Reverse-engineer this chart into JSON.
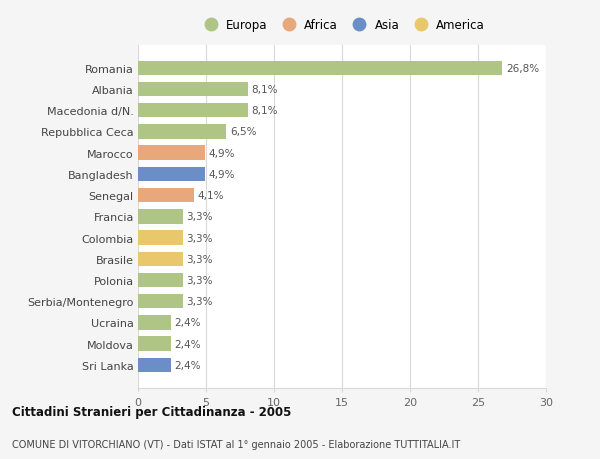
{
  "countries": [
    "Romania",
    "Albania",
    "Macedonia d/N.",
    "Repubblica Ceca",
    "Marocco",
    "Bangladesh",
    "Senegal",
    "Francia",
    "Colombia",
    "Brasile",
    "Polonia",
    "Serbia/Montenegro",
    "Ucraina",
    "Moldova",
    "Sri Lanka"
  ],
  "values": [
    26.8,
    8.1,
    8.1,
    6.5,
    4.9,
    4.9,
    4.1,
    3.3,
    3.3,
    3.3,
    3.3,
    3.3,
    2.4,
    2.4,
    2.4
  ],
  "labels": [
    "26,8%",
    "8,1%",
    "8,1%",
    "6,5%",
    "4,9%",
    "4,9%",
    "4,1%",
    "3,3%",
    "3,3%",
    "3,3%",
    "3,3%",
    "3,3%",
    "2,4%",
    "2,4%",
    "2,4%"
  ],
  "colors": [
    "#aec585",
    "#aec585",
    "#aec585",
    "#aec585",
    "#e8a87c",
    "#6b8ec7",
    "#e8a87c",
    "#aec585",
    "#e8c86b",
    "#e8c86b",
    "#aec585",
    "#aec585",
    "#aec585",
    "#aec585",
    "#6b8ec7"
  ],
  "legend_labels": [
    "Europa",
    "Africa",
    "Asia",
    "America"
  ],
  "legend_colors": [
    "#aec585",
    "#e8a87c",
    "#6b8ec7",
    "#e8c86b"
  ],
  "title": "Cittadini Stranieri per Cittadinanza - 2005",
  "subtitle": "COMUNE DI VITORCHIANO (VT) - Dati ISTAT al 1° gennaio 2005 - Elaborazione TUTTITALIA.IT",
  "xlim": [
    0,
    30
  ],
  "xticks": [
    0,
    5,
    10,
    15,
    20,
    25,
    30
  ],
  "bg_color": "#f5f5f5",
  "bar_bg_color": "#ffffff",
  "grid_color": "#d8d8d8",
  "bar_height": 0.68,
  "label_fontsize": 7.5,
  "ytick_fontsize": 8,
  "xtick_fontsize": 8
}
